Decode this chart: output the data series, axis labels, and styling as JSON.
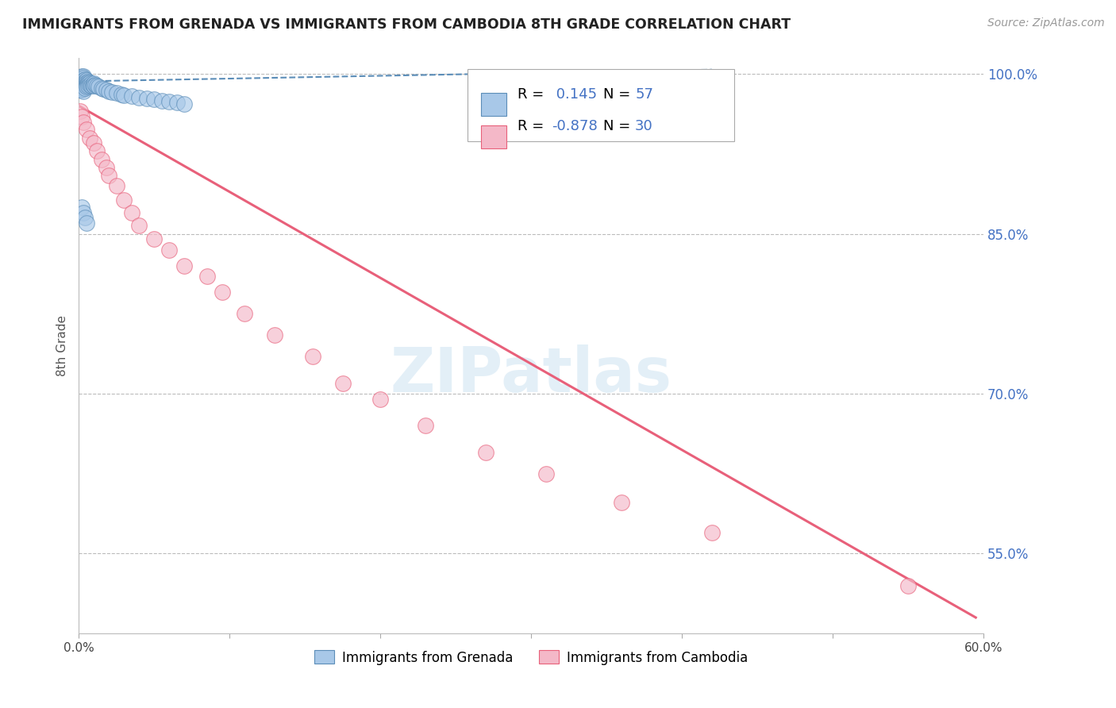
{
  "title": "IMMIGRANTS FROM GRENADA VS IMMIGRANTS FROM CAMBODIA 8TH GRADE CORRELATION CHART",
  "source": "Source: ZipAtlas.com",
  "ylabel": "8th Grade",
  "xlim": [
    0.0,
    0.6
  ],
  "ylim": [
    0.475,
    1.015
  ],
  "ytick_vals": [
    0.55,
    0.7,
    0.85,
    1.0
  ],
  "ytick_labels": [
    "55.0%",
    "70.0%",
    "85.0%",
    "100.0%"
  ],
  "xtick_vals": [
    0.0,
    0.1,
    0.2,
    0.3,
    0.4,
    0.5,
    0.6
  ],
  "xtick_labels": [
    "0.0%",
    "",
    "",
    "",
    "",
    "",
    "60.0%"
  ],
  "R_grenada": 0.145,
  "N_grenada": 57,
  "R_cambodia": -0.878,
  "N_cambodia": 30,
  "legend_labels": [
    "Immigrants from Grenada",
    "Immigrants from Cambodia"
  ],
  "color_grenada": "#A8C8E8",
  "color_cambodia": "#F4B8C8",
  "trendline_grenada_color": "#5B8DB8",
  "trendline_cambodia_color": "#E8607A",
  "watermark": "ZIPatlas",
  "background_color": "#FFFFFF",
  "grid_color": "#BBBBBB",
  "title_color": "#222222",
  "axis_label_color": "#555555",
  "stat_color": "#4472C4",
  "grenada_x": [
    0.001,
    0.001,
    0.002,
    0.002,
    0.002,
    0.002,
    0.002,
    0.003,
    0.003,
    0.003,
    0.003,
    0.003,
    0.003,
    0.003,
    0.003,
    0.004,
    0.004,
    0.004,
    0.004,
    0.004,
    0.005,
    0.005,
    0.005,
    0.005,
    0.006,
    0.006,
    0.006,
    0.007,
    0.007,
    0.008,
    0.008,
    0.009,
    0.01,
    0.01,
    0.011,
    0.012,
    0.013,
    0.015,
    0.016,
    0.018,
    0.02,
    0.022,
    0.025,
    0.028,
    0.03,
    0.035,
    0.04,
    0.045,
    0.05,
    0.055,
    0.06,
    0.065,
    0.07,
    0.002,
    0.003,
    0.004,
    0.005
  ],
  "grenada_y": [
    0.99,
    0.985,
    0.998,
    0.995,
    0.992,
    0.988,
    0.985,
    0.998,
    0.996,
    0.994,
    0.992,
    0.99,
    0.988,
    0.986,
    0.984,
    0.995,
    0.993,
    0.991,
    0.989,
    0.987,
    0.994,
    0.992,
    0.99,
    0.988,
    0.993,
    0.991,
    0.989,
    0.992,
    0.99,
    0.991,
    0.989,
    0.99,
    0.991,
    0.989,
    0.99,
    0.989,
    0.988,
    0.987,
    0.986,
    0.985,
    0.984,
    0.983,
    0.982,
    0.981,
    0.98,
    0.979,
    0.978,
    0.977,
    0.976,
    0.975,
    0.974,
    0.973,
    0.972,
    0.875,
    0.87,
    0.865,
    0.86
  ],
  "cambodia_x": [
    0.001,
    0.002,
    0.003,
    0.005,
    0.007,
    0.01,
    0.012,
    0.015,
    0.018,
    0.02,
    0.025,
    0.03,
    0.035,
    0.04,
    0.05,
    0.06,
    0.07,
    0.085,
    0.095,
    0.11,
    0.13,
    0.155,
    0.175,
    0.2,
    0.23,
    0.27,
    0.31,
    0.36,
    0.42,
    0.55
  ],
  "cambodia_y": [
    0.965,
    0.96,
    0.955,
    0.948,
    0.94,
    0.935,
    0.928,
    0.92,
    0.912,
    0.905,
    0.895,
    0.882,
    0.87,
    0.858,
    0.845,
    0.835,
    0.82,
    0.81,
    0.795,
    0.775,
    0.755,
    0.735,
    0.71,
    0.695,
    0.67,
    0.645,
    0.625,
    0.598,
    0.57,
    0.52
  ],
  "grenada_trendline_x": [
    0.0,
    0.42
  ],
  "grenada_trendline_y": [
    0.993,
    1.004
  ],
  "cambodia_trendline_x": [
    0.0,
    0.595
  ],
  "cambodia_trendline_y": [
    0.97,
    0.49
  ]
}
